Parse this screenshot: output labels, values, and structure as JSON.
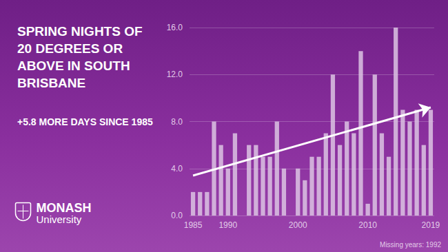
{
  "chart_data": {
    "type": "bar",
    "title": "SPRING NIGHTS OF 20 DEGREES OR ABOVE IN SOUTH BRISBANE",
    "subtitle": "+5.8 MORE DAYS SINCE 1985",
    "note": "Missing years: 1992",
    "logo": [
      "MONASH",
      "University"
    ],
    "categories": [
      "1985",
      null,
      null,
      null,
      null,
      "1990",
      null,
      null,
      null,
      null,
      null,
      null,
      null,
      null,
      null,
      "2000",
      null,
      null,
      null,
      null,
      null,
      null,
      null,
      null,
      null,
      "2010",
      null,
      null,
      null,
      null,
      null,
      null,
      null,
      null,
      "2019"
    ],
    "values": [
      2,
      2,
      2,
      8,
      6,
      4,
      7,
      null,
      6,
      6,
      5,
      5,
      8,
      4,
      0,
      4,
      3,
      5,
      5,
      7,
      12,
      6,
      8,
      7,
      14,
      1,
      12,
      7,
      5,
      16,
      9,
      8,
      9,
      6,
      9
    ],
    "color": "#dcc3e3",
    "trend": {
      "values": [
        3.4,
        9.2
      ],
      "color": "#ffffff"
    },
    "ylim": [
      0,
      16
    ],
    "yticks": [
      {
        "value": 0,
        "label": "0.0"
      },
      {
        "value": 4,
        "label": "4.0"
      },
      {
        "value": 8,
        "label": "8.0"
      },
      {
        "value": 12,
        "label": "12.0"
      },
      {
        "value": 16,
        "label": "16.0"
      }
    ],
    "grid": true
  }
}
